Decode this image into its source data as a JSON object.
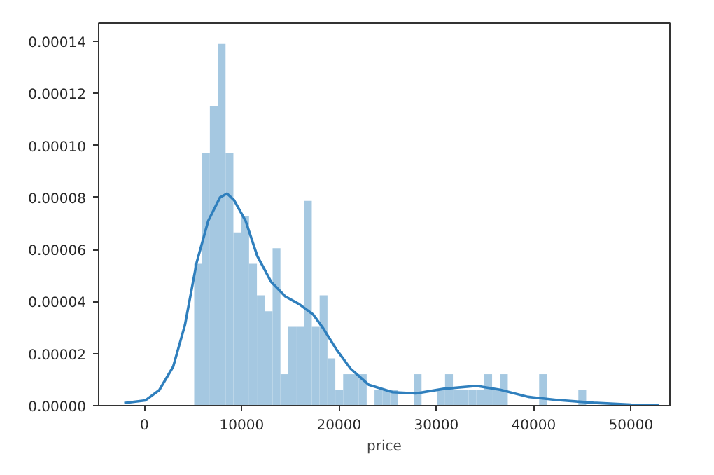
{
  "chart_data": {
    "type": "histogram",
    "xlabel": "price",
    "xlim": [
      -4700,
      54000
    ],
    "ylim": [
      0,
      0.000147
    ],
    "xticks": [
      0,
      10000,
      20000,
      30000,
      40000,
      50000
    ],
    "yticks": [
      {
        "value": 0,
        "label": "0.00000"
      },
      {
        "value": 2e-05,
        "label": "0.00002"
      },
      {
        "value": 4e-05,
        "label": "0.00004"
      },
      {
        "value": 6e-05,
        "label": "0.00006"
      },
      {
        "value": 8e-05,
        "label": "0.00008"
      },
      {
        "value": 0.0001,
        "label": "0.00010"
      },
      {
        "value": 0.00012,
        "label": "0.00012"
      },
      {
        "value": 0.00014,
        "label": "0.00014"
      }
    ],
    "grid": false,
    "series": [
      {
        "color": "#a5c8e1",
        "bins": [
          5118,
          5924,
          6729,
          7535,
          8341,
          9146,
          9952,
          10757,
          11563,
          12369,
          13174,
          13980,
          14786,
          15591,
          16397,
          17203,
          18008,
          18814,
          19620,
          20425,
          21231,
          22036,
          22842,
          23648,
          24453,
          25259,
          26065,
          26870,
          27676,
          28482,
          29287,
          30093,
          30898,
          31704,
          32510,
          33315,
          34121,
          34927,
          35732,
          36538,
          37344,
          38149,
          38955,
          39761,
          40566,
          41372,
          42177,
          42983,
          43789,
          44594,
          45400
        ],
        "values": [
          5.45e-05,
          9.69e-05,
          0.000115,
          0.000139,
          9.69e-05,
          6.66e-05,
          7.27e-05,
          5.45e-05,
          4.24e-05,
          3.63e-05,
          6.05e-05,
          1.21e-05,
          3.03e-05,
          3.03e-05,
          7.87e-05,
          3.03e-05,
          4.24e-05,
          1.82e-05,
          6.1e-06,
          1.21e-05,
          1.21e-05,
          1.21e-05,
          0,
          6.1e-06,
          6.1e-06,
          6.1e-06,
          0,
          0,
          1.21e-05,
          0,
          0,
          6.1e-06,
          1.21e-05,
          6.1e-06,
          6.1e-06,
          6.1e-06,
          6.1e-06,
          1.21e-05,
          6.1e-06,
          1.21e-05,
          0,
          0,
          0,
          0,
          1.21e-05,
          0,
          0,
          0,
          0,
          6.1e-06
        ]
      },
      {
        "type": "line",
        "color": "#2f7fbd",
        "x": [
          -2070,
          90,
          1530,
          2960,
          4170,
          5370,
          6560,
          7770,
          8490,
          9210,
          10400,
          11600,
          13040,
          14470,
          15910,
          17350,
          18320,
          19750,
          21190,
          23070,
          25510,
          27910,
          30790,
          34140,
          36550,
          39420,
          42300,
          46130,
          49970,
          52850
        ],
        "values": [
          1e-06,
          2e-06,
          6e-06,
          1.5e-05,
          3.1e-05,
          5.5e-05,
          7.1e-05,
          8e-05,
          8.15e-05,
          7.9e-05,
          7.1e-05,
          5.75e-05,
          4.75e-05,
          4.2e-05,
          3.9e-05,
          3.5e-05,
          3e-05,
          2.15e-05,
          1.42e-05,
          8e-06,
          5.2e-06,
          4.7e-06,
          6.5e-06,
          7.6e-06,
          6.1e-06,
          3.4e-06,
          2.2e-06,
          1.1e-06,
          4e-07,
          3e-07
        ]
      }
    ]
  }
}
